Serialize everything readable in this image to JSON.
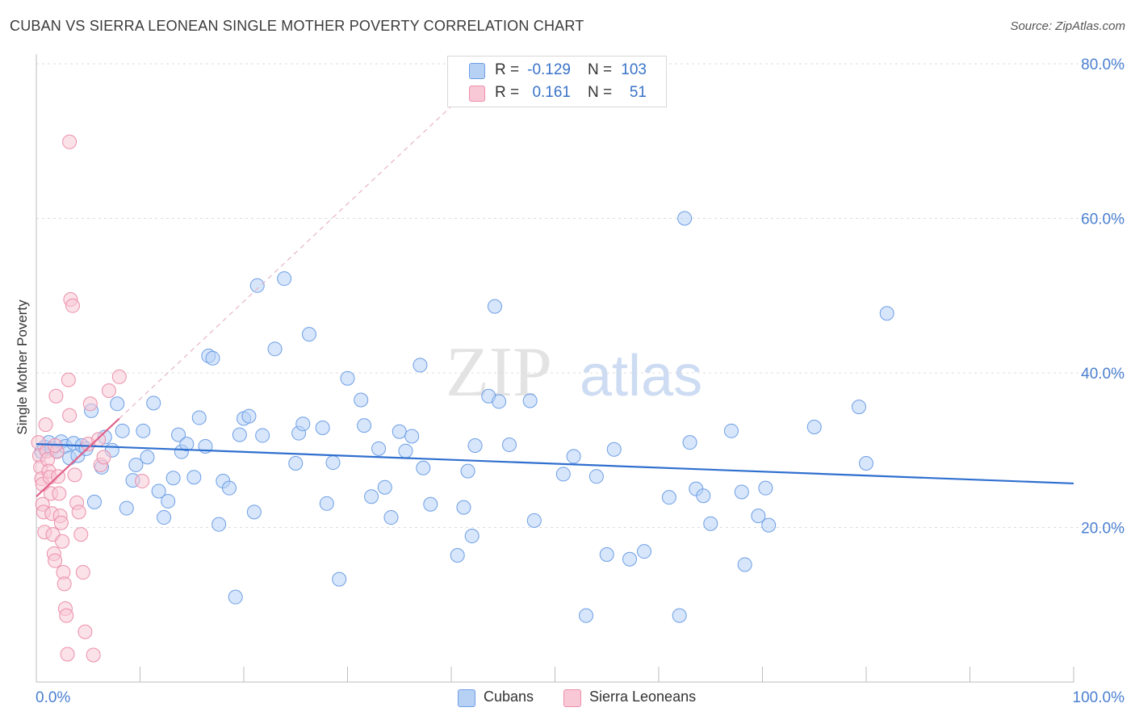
{
  "title": "CUBAN VS SIERRA LEONEAN SINGLE MOTHER POVERTY CORRELATION CHART",
  "source": "Source: ZipAtlas.com",
  "watermark": {
    "zip": "ZIP",
    "atlas": "atlas"
  },
  "legend": {
    "rows": [
      {
        "r_label": "R =",
        "r_value": "-0.129",
        "n_label": "N =",
        "n_value": "103",
        "color": "#b7d1f5",
        "border": "#6d9ee6"
      },
      {
        "r_label": "R =",
        "r_value": "0.161",
        "n_label": "N =",
        "n_value": "51",
        "color": "#f8c8d6",
        "border": "#ec8fab"
      }
    ]
  },
  "bottom_legend": {
    "cubans": "Cubans",
    "sierra": "Sierra Leoneans"
  },
  "chart_data": {
    "type": "scatter",
    "title": "CUBAN VS SIERRA LEONEAN SINGLE MOTHER POVERTY CORRELATION CHART",
    "xlabel": "",
    "ylabel": "Single Mother Poverty",
    "xlim": [
      0,
      100
    ],
    "ylim": [
      0,
      80
    ],
    "x_tick_labels": [
      "0.0%",
      "100.0%"
    ],
    "y_tick_labels": [
      "20.0%",
      "40.0%",
      "60.0%",
      "80.0%"
    ],
    "y_ticks": [
      20,
      40,
      60,
      80
    ],
    "grid": "horizontal dashed",
    "legend_position": "top-center",
    "series": [
      {
        "name": "Cubans",
        "color": "#6d9ee6",
        "fill": "#b7d1f5",
        "trend": {
          "x": [
            0,
            100
          ],
          "y": [
            30.8,
            25.7
          ]
        },
        "points": [
          [
            0.5,
            29.8
          ],
          [
            0.8,
            30.4
          ],
          [
            1.2,
            31.0
          ],
          [
            1.5,
            30.2
          ],
          [
            2.0,
            29.9
          ],
          [
            2.4,
            31.1
          ],
          [
            2.8,
            30.5
          ],
          [
            3.2,
            29.0
          ],
          [
            3.6,
            30.9
          ],
          [
            4.0,
            29.3
          ],
          [
            4.4,
            30.6
          ],
          [
            4.8,
            30.2
          ],
          [
            5.3,
            35.1
          ],
          [
            5.6,
            23.3
          ],
          [
            6.3,
            27.8
          ],
          [
            6.6,
            31.7
          ],
          [
            7.3,
            30.0
          ],
          [
            7.8,
            36.0
          ],
          [
            8.3,
            32.5
          ],
          [
            8.7,
            22.5
          ],
          [
            9.3,
            26.1
          ],
          [
            9.6,
            28.1
          ],
          [
            10.3,
            32.5
          ],
          [
            10.7,
            29.1
          ],
          [
            11.3,
            36.1
          ],
          [
            11.8,
            24.7
          ],
          [
            12.3,
            21.3
          ],
          [
            12.7,
            23.4
          ],
          [
            13.2,
            26.4
          ],
          [
            13.7,
            32.0
          ],
          [
            14.0,
            29.8
          ],
          [
            14.5,
            30.8
          ],
          [
            15.2,
            26.5
          ],
          [
            15.7,
            34.2
          ],
          [
            16.3,
            30.5
          ],
          [
            16.6,
            42.2
          ],
          [
            17.0,
            41.9
          ],
          [
            17.6,
            20.4
          ],
          [
            18.0,
            26.0
          ],
          [
            18.6,
            25.1
          ],
          [
            19.2,
            11.0
          ],
          [
            19.6,
            32.0
          ],
          [
            20.0,
            34.1
          ],
          [
            20.5,
            34.4
          ],
          [
            21.0,
            22.0
          ],
          [
            21.3,
            51.3
          ],
          [
            21.8,
            31.9
          ],
          [
            23.0,
            43.1
          ],
          [
            23.9,
            52.2
          ],
          [
            25.0,
            28.3
          ],
          [
            25.3,
            32.2
          ],
          [
            25.7,
            33.4
          ],
          [
            26.3,
            45.0
          ],
          [
            27.6,
            32.9
          ],
          [
            28.0,
            23.1
          ],
          [
            28.6,
            28.4
          ],
          [
            29.2,
            13.3
          ],
          [
            30.0,
            39.3
          ],
          [
            31.3,
            36.5
          ],
          [
            31.6,
            33.2
          ],
          [
            32.3,
            24.0
          ],
          [
            33.0,
            30.2
          ],
          [
            33.6,
            25.2
          ],
          [
            34.2,
            21.3
          ],
          [
            35.0,
            32.4
          ],
          [
            35.6,
            29.9
          ],
          [
            36.2,
            31.8
          ],
          [
            37.0,
            41.0
          ],
          [
            37.3,
            27.7
          ],
          [
            38.0,
            23.0
          ],
          [
            40.6,
            16.4
          ],
          [
            41.2,
            22.6
          ],
          [
            41.6,
            27.3
          ],
          [
            42.0,
            18.9
          ],
          [
            42.3,
            30.6
          ],
          [
            43.6,
            37.0
          ],
          [
            44.2,
            48.6
          ],
          [
            44.6,
            36.3
          ],
          [
            45.6,
            30.7
          ],
          [
            47.6,
            36.4
          ],
          [
            48.0,
            20.9
          ],
          [
            50.8,
            26.9
          ],
          [
            51.8,
            29.2
          ],
          [
            53.0,
            8.6
          ],
          [
            54.0,
            26.6
          ],
          [
            55.0,
            16.5
          ],
          [
            55.7,
            30.1
          ],
          [
            57.2,
            15.9
          ],
          [
            58.6,
            16.9
          ],
          [
            61.0,
            23.9
          ],
          [
            62.0,
            8.6
          ],
          [
            62.5,
            60.0
          ],
          [
            63.0,
            31.0
          ],
          [
            63.6,
            25.0
          ],
          [
            64.3,
            24.1
          ],
          [
            65.0,
            20.5
          ],
          [
            67.0,
            32.5
          ],
          [
            68.0,
            24.6
          ],
          [
            68.3,
            15.2
          ],
          [
            69.6,
            21.5
          ],
          [
            70.3,
            25.1
          ],
          [
            70.6,
            20.3
          ],
          [
            75.0,
            33.0
          ],
          [
            79.3,
            35.6
          ],
          [
            80.0,
            28.3
          ],
          [
            82.0,
            47.7
          ]
        ]
      },
      {
        "name": "Sierra Leoneans",
        "color": "#ec8fab",
        "fill": "#f8c8d6",
        "trend": {
          "x": [
            0,
            8
          ],
          "y": [
            24.0,
            34.1
          ]
        },
        "trend_extension": {
          "x": [
            8,
            40
          ],
          "y": [
            34.1,
            74.5
          ]
        },
        "points": [
          [
            0.2,
            31.0
          ],
          [
            0.3,
            29.3
          ],
          [
            0.4,
            27.8
          ],
          [
            0.5,
            26.3
          ],
          [
            0.6,
            25.6
          ],
          [
            0.6,
            23.0
          ],
          [
            0.7,
            22.0
          ],
          [
            0.8,
            19.4
          ],
          [
            0.9,
            33.3
          ],
          [
            1.0,
            29.9
          ],
          [
            1.1,
            28.8
          ],
          [
            1.2,
            27.3
          ],
          [
            1.3,
            26.5
          ],
          [
            1.4,
            24.4
          ],
          [
            1.5,
            21.8
          ],
          [
            1.6,
            19.1
          ],
          [
            1.7,
            16.6
          ],
          [
            1.8,
            15.7
          ],
          [
            1.9,
            37.0
          ],
          [
            2.0,
            29.8
          ],
          [
            2.1,
            26.6
          ],
          [
            2.2,
            24.4
          ],
          [
            2.3,
            21.5
          ],
          [
            2.4,
            20.6
          ],
          [
            2.5,
            18.2
          ],
          [
            2.6,
            14.2
          ],
          [
            2.7,
            12.7
          ],
          [
            2.8,
            9.5
          ],
          [
            2.9,
            8.6
          ],
          [
            3.0,
            3.6
          ],
          [
            3.1,
            39.1
          ],
          [
            3.2,
            34.5
          ],
          [
            3.3,
            49.5
          ],
          [
            3.5,
            48.7
          ],
          [
            3.7,
            26.8
          ],
          [
            3.9,
            23.2
          ],
          [
            4.1,
            22.0
          ],
          [
            4.3,
            19.1
          ],
          [
            4.5,
            14.2
          ],
          [
            4.7,
            6.5
          ],
          [
            5.0,
            30.8
          ],
          [
            5.2,
            36.0
          ],
          [
            5.5,
            3.5
          ],
          [
            6.0,
            31.4
          ],
          [
            6.2,
            28.1
          ],
          [
            6.5,
            29.1
          ],
          [
            7.0,
            37.7
          ],
          [
            8.0,
            39.5
          ],
          [
            10.2,
            26.0
          ],
          [
            3.2,
            69.9
          ],
          [
            1.8,
            30.6
          ]
        ]
      }
    ]
  }
}
